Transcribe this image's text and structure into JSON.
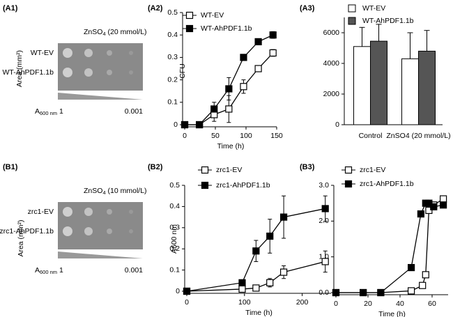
{
  "spot_assays": [
    {
      "panel": "(A1)",
      "title": {
        "main": "ZnSO",
        "sub": "4",
        "rest": " (20 mmol/L)"
      },
      "rows": [
        "WT-EV",
        "WT-AhPDF1.1b"
      ],
      "density_label": {
        "main": "A",
        "sub": "600 nm"
      },
      "density_start": "1",
      "density_end": "0.001"
    },
    {
      "panel": "(B1)",
      "title": {
        "main": "ZnSO",
        "sub": "4",
        "rest": " (10 mmol/L)"
      },
      "rows": [
        "zrc1-EV",
        "zrc1-AhPDF1.1b"
      ],
      "density_label": {
        "main": "A",
        "sub": "600 nm"
      },
      "density_start": "1",
      "density_end": "0.001"
    }
  ],
  "chart_data": [
    {
      "type": "line",
      "panel": "(A2)",
      "x_label": "Time (h)",
      "y_label": "Area (mm²)",
      "xlim": [
        0,
        150
      ],
      "xticks": [
        0,
        50,
        100,
        150
      ],
      "ylim": [
        0,
        0.5
      ],
      "yticks": [
        0,
        0.1,
        0.2,
        0.3,
        0.4,
        0.5
      ],
      "series": [
        {
          "name": "WT-EV",
          "color": "#ffffff",
          "x": [
            0,
            24,
            48,
            72,
            96,
            120,
            144
          ],
          "values": [
            0,
            0,
            0.045,
            0.07,
            0.17,
            0.25,
            0.32
          ],
          "errors": [
            0,
            0,
            0.03,
            0.06,
            0.03,
            0.01,
            0.015
          ]
        },
        {
          "name": "WT-AhPDF1.1b",
          "color": "#000000",
          "x": [
            0,
            24,
            48,
            72,
            96,
            120,
            144
          ],
          "values": [
            0,
            0,
            0.07,
            0.16,
            0.3,
            0.37,
            0.4
          ],
          "errors": [
            0,
            0,
            0.03,
            0.05,
            0.01,
            0.01,
            0.015
          ]
        }
      ]
    },
    {
      "type": "bar",
      "panel": "(A3)",
      "y_label": "CFU",
      "categories": [
        "Control",
        "ZnSO4 (20 mmol/L)"
      ],
      "ylim": [
        0,
        7000
      ],
      "yticks": [
        0,
        2000,
        4000,
        6000
      ],
      "series": [
        {
          "name": "WT-EV",
          "color": "#ffffff",
          "values": [
            5100,
            4300
          ],
          "errors": [
            1250,
            1700
          ]
        },
        {
          "name": "WT-AhPDF1.1b",
          "color": "#555555",
          "values": [
            5450,
            4800
          ],
          "errors": [
            1100,
            1350
          ]
        }
      ]
    },
    {
      "type": "line",
      "panel": "(B2)",
      "x_label": "Time (h)",
      "y_label": "Area (mm²)",
      "xlim": [
        0,
        250
      ],
      "xticks": [
        0,
        100,
        200
      ],
      "ylim": [
        0,
        0.5
      ],
      "yticks": [
        0,
        0.1,
        0.2,
        0.3,
        0.4,
        0.5
      ],
      "series": [
        {
          "name": "zrc1-EV",
          "color": "#ffffff",
          "x": [
            0,
            96,
            120,
            144,
            168,
            240
          ],
          "values": [
            0,
            0.01,
            0.015,
            0.04,
            0.09,
            0.14
          ],
          "errors": [
            0,
            0.005,
            0.01,
            0.02,
            0.03,
            0.05
          ]
        },
        {
          "name": "zrc1-AhPDF1.1b",
          "color": "#000000",
          "x": [
            0,
            96,
            120,
            144,
            168,
            240
          ],
          "values": [
            0,
            0.04,
            0.19,
            0.26,
            0.35,
            0.39
          ],
          "errors": [
            0,
            0.01,
            0.05,
            0.08,
            0.1,
            0.06
          ]
        }
      ]
    },
    {
      "type": "line",
      "panel": "(B3)",
      "x_label": "Time (h)",
      "y_label": "A600 nm",
      "xlim": [
        0,
        70
      ],
      "xticks": [
        0,
        20,
        40,
        60
      ],
      "ylim": [
        0,
        3
      ],
      "yticks": [
        {
          "value": 0,
          "label": "0.0"
        },
        {
          "value": 1,
          "label": "1.0"
        },
        {
          "value": 2,
          "label": "2.0"
        },
        {
          "value": 3,
          "label": "3.0"
        }
      ],
      "series": [
        {
          "name": "zrc1-EV",
          "color": "#ffffff",
          "x": [
            0,
            17,
            28,
            47,
            54,
            56,
            58,
            61,
            67
          ],
          "values": [
            0,
            0,
            0,
            0.05,
            0.2,
            0.5,
            2.3,
            2.45,
            2.62
          ]
        },
        {
          "name": "zrc1-AhPDF1.1b",
          "color": "#000000",
          "x": [
            0,
            17,
            28,
            47,
            53,
            56,
            58,
            61,
            67
          ],
          "values": [
            0,
            0,
            0,
            0.7,
            2.2,
            2.5,
            2.5,
            2.4,
            2.45
          ]
        }
      ]
    }
  ]
}
